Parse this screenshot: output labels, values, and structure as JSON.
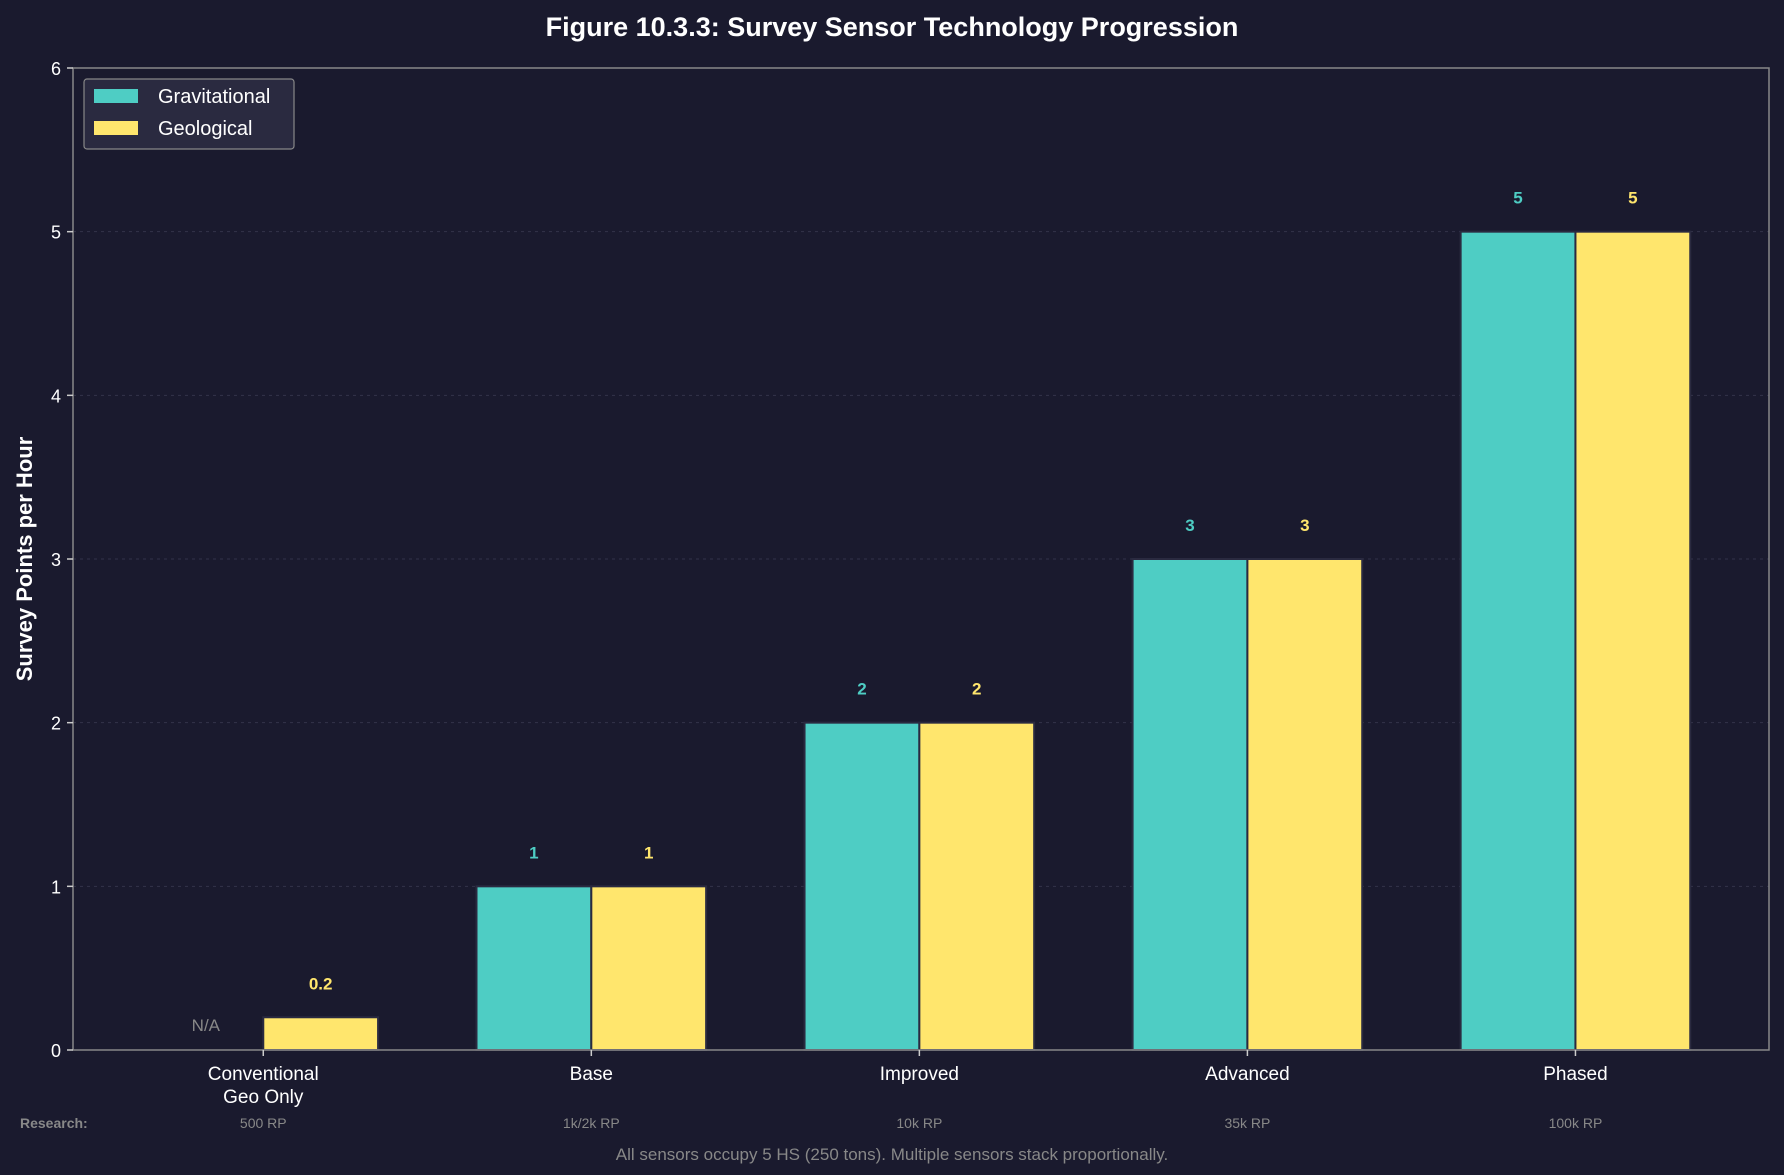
{
  "chart_data": {
    "type": "bar",
    "title": "Figure 10.3.3: Survey Sensor Technology Progression",
    "xlabel": "",
    "ylabel": "Survey Points per Hour",
    "ylim": [
      0,
      6
    ],
    "yticks": [
      "0",
      "1",
      "2",
      "3",
      "4",
      "5",
      "6"
    ],
    "grid": "horizontal dotted",
    "legend_position": "top-left",
    "categories": [
      "Conventional\nGeo Only",
      "Base",
      "Improved",
      "Advanced",
      "Phased"
    ],
    "research_label": "Research:",
    "research_costs": [
      "500 RP",
      "1k/2k RP",
      "10k RP",
      "35k RP",
      "100k RP"
    ],
    "series": [
      {
        "name": "Gravitational",
        "color": "#4ecdc4",
        "values": [
          null,
          1,
          2,
          3,
          5
        ],
        "labels": [
          "N/A",
          "1",
          "2",
          "3",
          "5"
        ]
      },
      {
        "name": "Geological",
        "color": "#ffe66d",
        "values": [
          0.2,
          1,
          2,
          3,
          5
        ],
        "labels": [
          "0.2",
          "1",
          "2",
          "3",
          "5"
        ]
      }
    ],
    "footnote": "All sensors occupy 5 HS (250 tons). Multiple sensors stack proportionally."
  },
  "colors": {
    "background": "#1a1a2e",
    "axis": "#888888",
    "text": "#ffffff",
    "muted": "#888888",
    "legend_bg": "#2a2a40"
  }
}
